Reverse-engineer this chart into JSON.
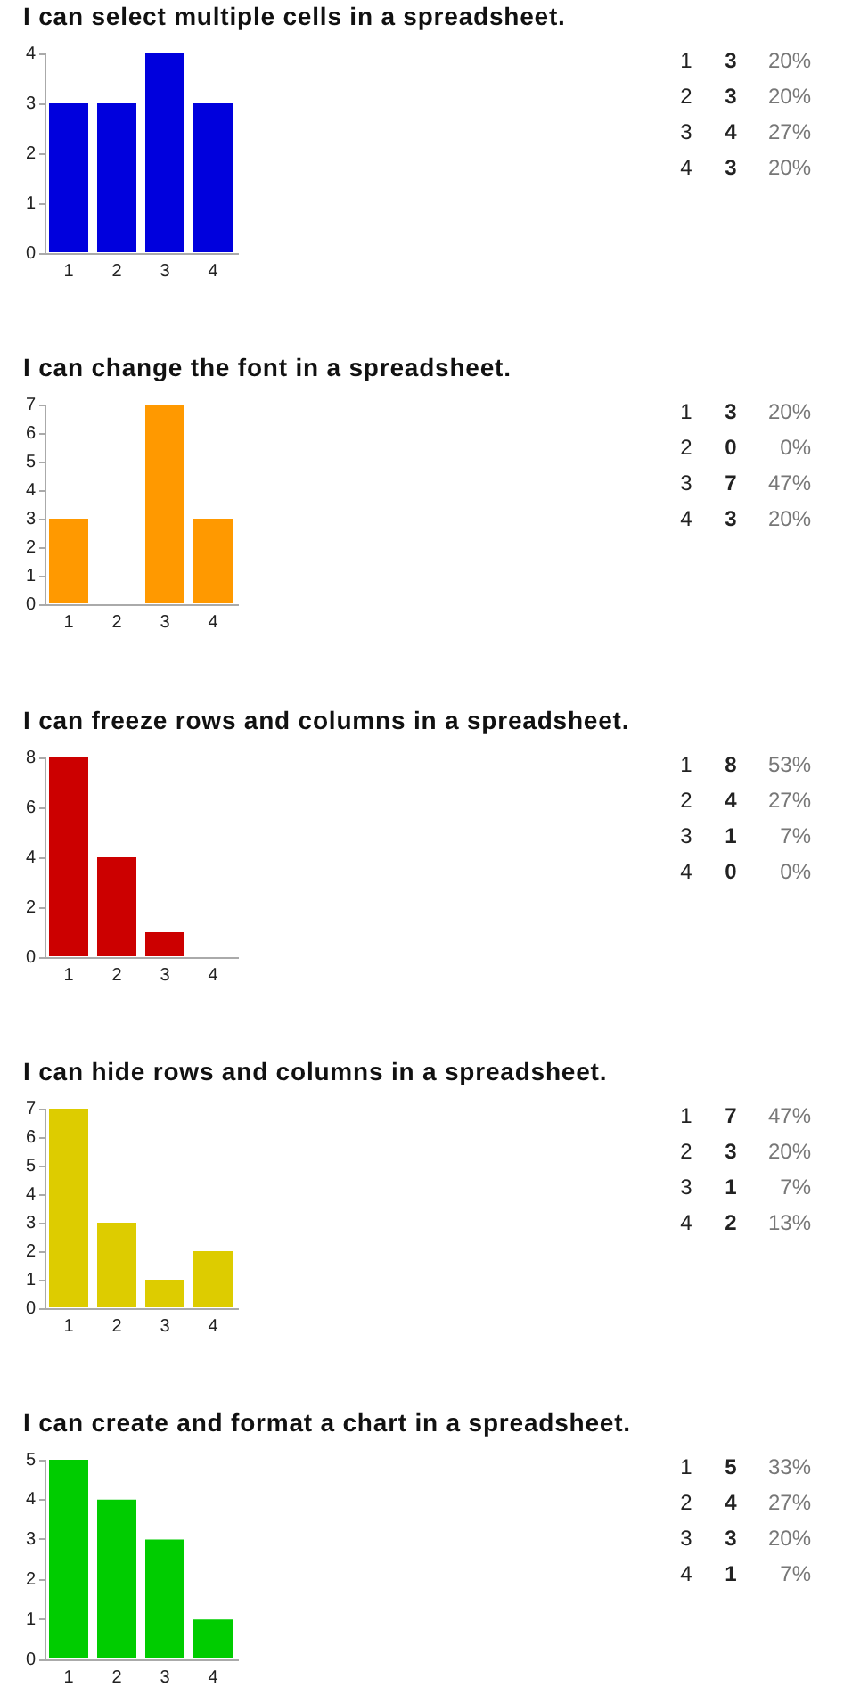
{
  "chart_data": [
    {
      "type": "bar",
      "title": "I can select multiple cells in a spreadsheet.",
      "categories": [
        "1",
        "2",
        "3",
        "4"
      ],
      "values": [
        3,
        3,
        4,
        3
      ],
      "color": "#0000dd",
      "ylim": [
        0,
        4
      ],
      "yticks": [
        0,
        1,
        2,
        3,
        4
      ],
      "grid": false,
      "annotations": [
        "3",
        "20%",
        "3",
        "20%",
        "4",
        "27%",
        "3",
        "20%"
      ]
    },
    {
      "type": "bar",
      "title": "I can change the font in a spreadsheet.",
      "categories": [
        "1",
        "2",
        "3",
        "4"
      ],
      "values": [
        3,
        0,
        7,
        3
      ],
      "color": "#ff9900",
      "ylim": [
        0,
        7
      ],
      "yticks": [
        0,
        1,
        2,
        3,
        4,
        5,
        6,
        7
      ],
      "grid": false,
      "annotations": [
        "3",
        "20%",
        "0",
        "0%",
        "7",
        "47%",
        "3",
        "20%"
      ]
    },
    {
      "type": "bar",
      "title": "I can freeze rows and columns in a spreadsheet.",
      "categories": [
        "1",
        "2",
        "3",
        "4"
      ],
      "values": [
        8,
        4,
        1,
        0
      ],
      "color": "#cc0000",
      "ylim": [
        0,
        8
      ],
      "yticks": [
        0,
        2,
        4,
        6,
        8
      ],
      "grid": false,
      "annotations": [
        "8",
        "53%",
        "4",
        "27%",
        "1",
        "7%",
        "0",
        "0%"
      ]
    },
    {
      "type": "bar",
      "title": "I can hide rows and columns in a spreadsheet.",
      "categories": [
        "1",
        "2",
        "3",
        "4"
      ],
      "values": [
        7,
        3,
        1,
        2
      ],
      "color": "#ddcc00",
      "ylim": [
        0,
        7
      ],
      "yticks": [
        0,
        1,
        2,
        3,
        4,
        5,
        6,
        7
      ],
      "grid": false,
      "annotations": [
        "7",
        "47%",
        "3",
        "20%",
        "1",
        "7%",
        "2",
        "13%"
      ]
    },
    {
      "type": "bar",
      "title": "I can create and format a chart in a spreadsheet.",
      "categories": [
        "1",
        "2",
        "3",
        "4"
      ],
      "values": [
        5,
        4,
        3,
        1
      ],
      "color": "#00cc00",
      "ylim": [
        0,
        5
      ],
      "yticks": [
        0,
        1,
        2,
        3,
        4,
        5
      ],
      "grid": false,
      "annotations": [
        "5",
        "33%",
        "4",
        "27%",
        "3",
        "20%",
        "1",
        "7%"
      ]
    }
  ]
}
